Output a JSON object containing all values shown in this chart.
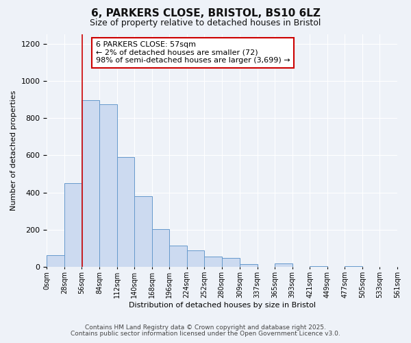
{
  "title1": "6, PARKERS CLOSE, BRISTOL, BS10 6LZ",
  "title2": "Size of property relative to detached houses in Bristol",
  "xlabel": "Distribution of detached houses by size in Bristol",
  "ylabel": "Number of detached properties",
  "bar_values": [
    65,
    450,
    895,
    875,
    590,
    380,
    205,
    115,
    90,
    55,
    48,
    15,
    0,
    20,
    0,
    5,
    0,
    5,
    0,
    0
  ],
  "bin_edges": [
    0,
    28,
    56,
    84,
    112,
    140,
    168,
    196,
    224,
    252,
    280,
    309,
    337,
    365,
    393,
    421,
    449,
    477,
    505,
    533,
    561
  ],
  "tick_labels": [
    "0sqm",
    "28sqm",
    "56sqm",
    "84sqm",
    "112sqm",
    "140sqm",
    "168sqm",
    "196sqm",
    "224sqm",
    "252sqm",
    "280sqm",
    "309sqm",
    "337sqm",
    "365sqm",
    "393sqm",
    "421sqm",
    "449sqm",
    "477sqm",
    "505sqm",
    "533sqm",
    "561sqm"
  ],
  "bar_color": "#ccdaf0",
  "bar_edge_color": "#6699cc",
  "vline_x": 57,
  "vline_color": "#cc0000",
  "annotation_text": "6 PARKERS CLOSE: 57sqm\n← 2% of detached houses are smaller (72)\n98% of semi-detached houses are larger (3,699) →",
  "ylim": [
    0,
    1250
  ],
  "yticks": [
    0,
    200,
    400,
    600,
    800,
    1000,
    1200
  ],
  "xlim_max": 561,
  "footer1": "Contains HM Land Registry data © Crown copyright and database right 2025.",
  "footer2": "Contains public sector information licensed under the Open Government Licence v3.0.",
  "background_color": "#eef2f8",
  "plot_bg_color": "#eef2f8",
  "grid_color": "#ffffff",
  "title_fontsize": 11,
  "subtitle_fontsize": 9,
  "annotation_fontsize": 8,
  "footer_fontsize": 6.5
}
